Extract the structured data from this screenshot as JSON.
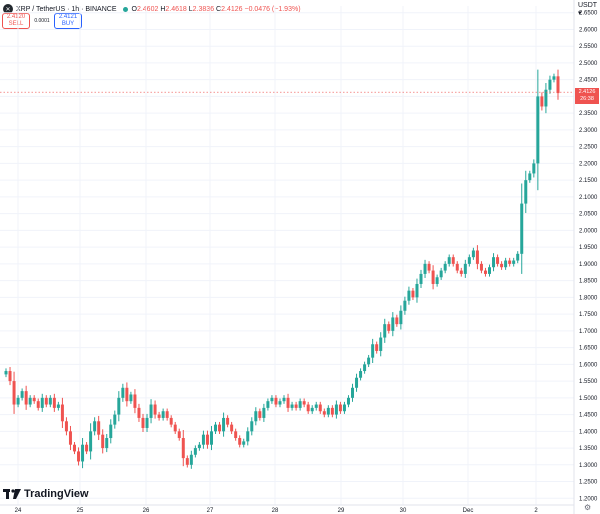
{
  "header": {
    "symbol": "XRP / TetherUS · 1h · BINANCE",
    "open_label": "O",
    "open_value": "2.4602",
    "high_label": "H",
    "high_value": "2.4618",
    "low_label": "L",
    "low_value": "2.3836",
    "close_label": "C",
    "close_value": "2.4126",
    "change": "−0.0476 (−1.93%)"
  },
  "trade": {
    "sell_price": "2.4120",
    "sell_label": "SELL",
    "spread": "0.0001",
    "buy_price": "2.4121",
    "buy_label": "BUY"
  },
  "currency_label": "USDT ▾",
  "price_tag": {
    "price": "2.4126",
    "countdown": "26:38"
  },
  "brand": "TradingView",
  "colors": {
    "up": "#26a69a",
    "down": "#ef5350",
    "grid": "#f0f3fa"
  },
  "chart_data": {
    "type": "candlestick",
    "x_ticks": [
      "24",
      "25",
      "26",
      "27",
      "28",
      "29",
      "30",
      "Dec",
      "2"
    ],
    "y_ticks": [
      "1.2000",
      "1.2500",
      "1.3000",
      "1.3500",
      "1.4000",
      "1.4500",
      "1.5000",
      "1.5500",
      "1.6000",
      "1.6500",
      "1.7000",
      "1.7500",
      "1.8000",
      "1.8500",
      "1.9000",
      "1.9500",
      "2.0000",
      "2.0500",
      "2.1000",
      "2.1500",
      "2.2000",
      "2.2500",
      "2.3000",
      "2.3500",
      "2.4000",
      "2.4500",
      "2.5000",
      "2.5500",
      "2.6000",
      "2.6500"
    ],
    "ylim": [
      1.18,
      2.67
    ],
    "last_price": 2.4126,
    "grid": true,
    "closes": [
      1.58,
      1.55,
      1.48,
      1.5,
      1.52,
      1.48,
      1.5,
      1.49,
      1.47,
      1.5,
      1.48,
      1.5,
      1.47,
      1.48,
      1.43,
      1.4,
      1.36,
      1.34,
      1.31,
      1.36,
      1.34,
      1.4,
      1.43,
      1.39,
      1.35,
      1.38,
      1.42,
      1.45,
      1.5,
      1.53,
      1.49,
      1.51,
      1.47,
      1.44,
      1.41,
      1.44,
      1.48,
      1.45,
      1.44,
      1.46,
      1.44,
      1.42,
      1.4,
      1.38,
      1.32,
      1.3,
      1.33,
      1.35,
      1.36,
      1.39,
      1.36,
      1.4,
      1.42,
      1.4,
      1.44,
      1.42,
      1.4,
      1.38,
      1.36,
      1.37,
      1.4,
      1.43,
      1.46,
      1.44,
      1.47,
      1.49,
      1.5,
      1.48,
      1.49,
      1.5,
      1.47,
      1.48,
      1.47,
      1.49,
      1.48,
      1.46,
      1.47,
      1.48,
      1.46,
      1.45,
      1.47,
      1.45,
      1.48,
      1.46,
      1.48,
      1.5,
      1.53,
      1.56,
      1.58,
      1.6,
      1.62,
      1.66,
      1.64,
      1.68,
      1.72,
      1.7,
      1.74,
      1.72,
      1.76,
      1.79,
      1.82,
      1.8,
      1.84,
      1.87,
      1.9,
      1.88,
      1.84,
      1.86,
      1.88,
      1.9,
      1.92,
      1.9,
      1.88,
      1.87,
      1.9,
      1.92,
      1.94,
      1.9,
      1.88,
      1.87,
      1.89,
      1.92,
      1.9,
      1.89,
      1.91,
      1.9,
      1.91,
      1.93,
      2.08,
      2.15,
      2.17,
      2.2,
      2.4,
      2.37,
      2.42,
      2.45,
      2.46,
      2.41
    ]
  }
}
